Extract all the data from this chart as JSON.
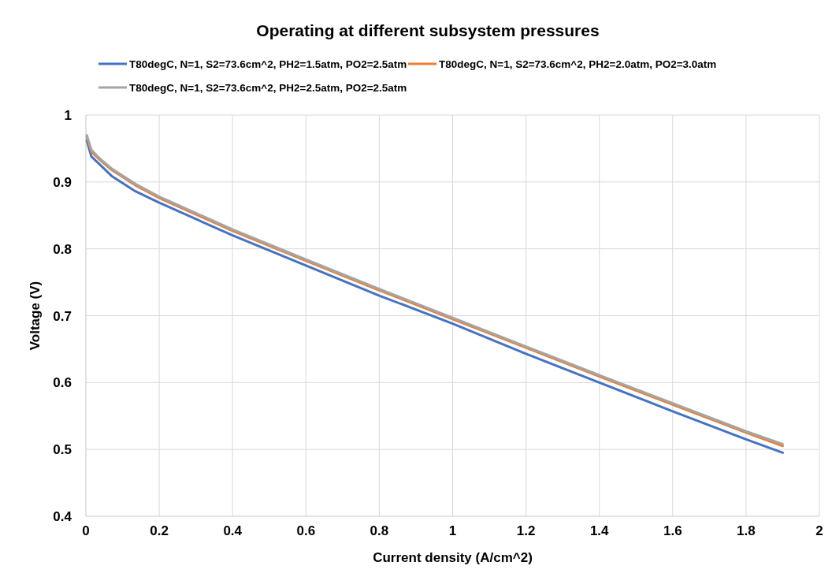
{
  "chart_data": {
    "type": "line",
    "title": "Operating at different subsystem pressures",
    "xlabel": "Current density (A/cm^2)",
    "ylabel": "Voltage (V)",
    "xlim": [
      0,
      2
    ],
    "ylim": [
      0.4,
      1
    ],
    "xticks": [
      0,
      0.2,
      0.4,
      0.6,
      0.8,
      1,
      1.2,
      1.4,
      1.6,
      1.8,
      2
    ],
    "yticks": [
      0.4,
      0.5,
      0.6,
      0.7,
      0.8,
      0.9,
      1
    ],
    "grid": true,
    "legend": "top",
    "marker": "none",
    "line_style": "solid",
    "x": [
      0.0025,
      0.015,
      0.04,
      0.07,
      0.135,
      0.2,
      0.4,
      0.6,
      0.8,
      1,
      1.2,
      1.4,
      1.6,
      1.8,
      1.9
    ],
    "series": [
      {
        "name": "T80degC, N=1, S2=73.6cm^2, PH2=1.5atm, PO2=2.5atm",
        "color": "#4472c4",
        "values": [
          0.962,
          0.938,
          0.925,
          0.909,
          0.886,
          0.869,
          0.82,
          0.775,
          0.73,
          0.688,
          0.643,
          0.6,
          0.557,
          0.515,
          0.495
        ]
      },
      {
        "name": "T80degC, N=1, S2=73.6cm^2, PH2=2.0atm, PO2=3.0atm",
        "color": "#ed7d31",
        "values": [
          0.967,
          0.945,
          0.932,
          0.918,
          0.895,
          0.876,
          0.827,
          0.782,
          0.738,
          0.695,
          0.652,
          0.609,
          0.567,
          0.525,
          0.505
        ]
      },
      {
        "name": "T80degC, N=1, S2=73.6cm^2, PH2=2.5atm, PO2=2.5atm",
        "color": "#a5a5a5",
        "values": [
          0.97,
          0.948,
          0.934,
          0.92,
          0.897,
          0.878,
          0.829,
          0.784,
          0.74,
          0.697,
          0.654,
          0.611,
          0.569,
          0.527,
          0.508
        ]
      }
    ]
  }
}
